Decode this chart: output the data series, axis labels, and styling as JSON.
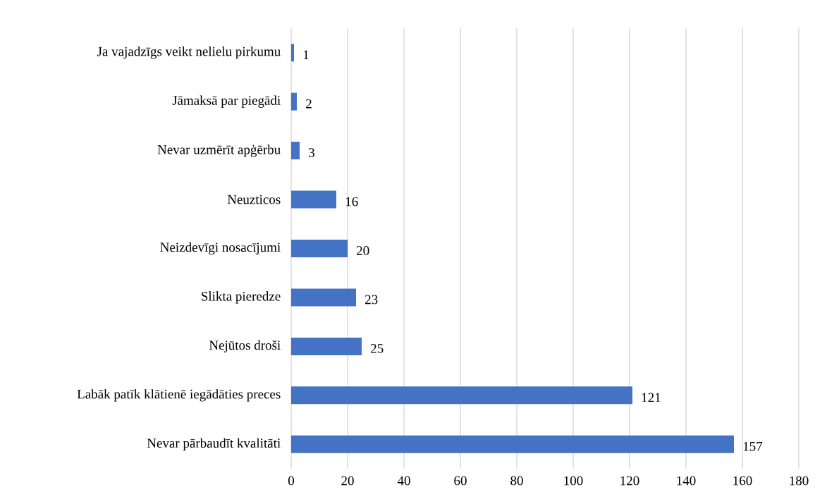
{
  "chart_data": {
    "type": "bar",
    "orientation": "horizontal",
    "categories": [
      "Ja vajadzīgs veikt nelielu pirkumu",
      "Jāmaksā par piegādi",
      "Nevar uzmērīt apģērbu",
      "Neuzticos",
      "Neizdevīgi nosacījumi",
      "Slikta pieredze",
      "Nejūtos droši",
      "Labāk patīk klātienē iegādāties preces",
      "Nevar pārbaudīt kvalitāti"
    ],
    "values": [
      1,
      2,
      3,
      16,
      20,
      23,
      25,
      121,
      157
    ],
    "color": "#4472c4",
    "xlim": [
      0,
      180
    ],
    "xticks": [
      0,
      20,
      40,
      60,
      80,
      100,
      120,
      140,
      160,
      180
    ],
    "grid": "x",
    "data_labels": true
  }
}
